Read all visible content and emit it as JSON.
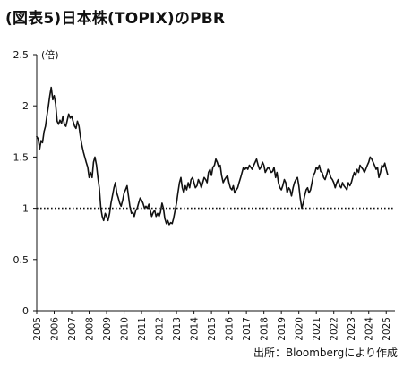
{
  "header": {
    "title": "(図表5)日本株(TOPIX)のPBR"
  },
  "footer": {
    "source": "出所：Bloombergにより作成"
  },
  "chart_data": {
    "type": "line",
    "title": "(図表5)日本株(TOPIX)のPBR",
    "ylabel": "(倍)",
    "xlabel": "",
    "ylim": [
      0,
      2.5
    ],
    "xlim": [
      2005,
      2025.5
    ],
    "yticks": [
      0,
      0.5,
      1,
      1.5,
      2,
      2.5
    ],
    "ytick_labels": [
      "0",
      "0.5",
      "1",
      "1.5",
      "2",
      "2.5"
    ],
    "xticks": [
      2005,
      2006,
      2007,
      2008,
      2009,
      2010,
      2011,
      2012,
      2013,
      2014,
      2015,
      2016,
      2017,
      2018,
      2019,
      2020,
      2021,
      2022,
      2023,
      2024,
      2025
    ],
    "xtick_labels": [
      "2005",
      "2006",
      "2007",
      "2008",
      "2009",
      "2010",
      "2011",
      "2012",
      "2013",
      "2014",
      "2015",
      "2016",
      "2017",
      "2018",
      "2019",
      "2020",
      "2021",
      "2022",
      "2023",
      "2024",
      "2025"
    ],
    "reference_lines": [
      {
        "y": 1.0,
        "style": "dotted"
      }
    ],
    "grid": false,
    "series": [
      {
        "color": "#111111",
        "x": [
          2005.0,
          2005.08,
          2005.17,
          2005.25,
          2005.33,
          2005.42,
          2005.5,
          2005.58,
          2005.67,
          2005.75,
          2005.83,
          2005.92,
          2006.0,
          2006.08,
          2006.17,
          2006.25,
          2006.33,
          2006.42,
          2006.5,
          2006.58,
          2006.67,
          2006.75,
          2006.83,
          2006.92,
          2007.0,
          2007.08,
          2007.17,
          2007.25,
          2007.33,
          2007.42,
          2007.5,
          2007.58,
          2007.67,
          2007.75,
          2007.83,
          2007.92,
          2008.0,
          2008.08,
          2008.17,
          2008.25,
          2008.33,
          2008.42,
          2008.5,
          2008.58,
          2008.67,
          2008.75,
          2008.83,
          2008.92,
          2009.0,
          2009.08,
          2009.17,
          2009.25,
          2009.33,
          2009.42,
          2009.5,
          2009.58,
          2009.67,
          2009.75,
          2009.83,
          2009.92,
          2010.0,
          2010.08,
          2010.17,
          2010.25,
          2010.33,
          2010.42,
          2010.5,
          2010.58,
          2010.67,
          2010.75,
          2010.83,
          2010.92,
          2011.0,
          2011.08,
          2011.17,
          2011.25,
          2011.33,
          2011.42,
          2011.5,
          2011.58,
          2011.67,
          2011.75,
          2011.83,
          2011.92,
          2012.0,
          2012.08,
          2012.17,
          2012.25,
          2012.33,
          2012.42,
          2012.5,
          2012.58,
          2012.67,
          2012.75,
          2012.83,
          2012.92,
          2013.0,
          2013.08,
          2013.17,
          2013.25,
          2013.33,
          2013.42,
          2013.5,
          2013.58,
          2013.67,
          2013.75,
          2013.83,
          2013.92,
          2014.0,
          2014.08,
          2014.17,
          2014.25,
          2014.33,
          2014.42,
          2014.5,
          2014.58,
          2014.67,
          2014.75,
          2014.83,
          2014.92,
          2015.0,
          2015.08,
          2015.17,
          2015.25,
          2015.33,
          2015.42,
          2015.5,
          2015.58,
          2015.67,
          2015.75,
          2015.83,
          2015.92,
          2016.0,
          2016.08,
          2016.17,
          2016.25,
          2016.33,
          2016.42,
          2016.5,
          2016.58,
          2016.67,
          2016.75,
          2016.83,
          2016.92,
          2017.0,
          2017.08,
          2017.17,
          2017.25,
          2017.33,
          2017.42,
          2017.5,
          2017.58,
          2017.67,
          2017.75,
          2017.83,
          2017.92,
          2018.0,
          2018.08,
          2018.17,
          2018.25,
          2018.33,
          2018.42,
          2018.5,
          2018.58,
          2018.67,
          2018.75,
          2018.83,
          2018.92,
          2019.0,
          2019.08,
          2019.17,
          2019.25,
          2019.33,
          2019.42,
          2019.5,
          2019.58,
          2019.67,
          2019.75,
          2019.83,
          2019.92,
          2020.0,
          2020.08,
          2020.17,
          2020.25,
          2020.33,
          2020.42,
          2020.5,
          2020.58,
          2020.67,
          2020.75,
          2020.83,
          2020.92,
          2021.0,
          2021.08,
          2021.17,
          2021.25,
          2021.33,
          2021.42,
          2021.5,
          2021.58,
          2021.67,
          2021.75,
          2021.83,
          2021.92,
          2022.0,
          2022.08,
          2022.17,
          2022.25,
          2022.33,
          2022.42,
          2022.5,
          2022.58,
          2022.67,
          2022.75,
          2022.83,
          2022.92,
          2023.0,
          2023.08,
          2023.17,
          2023.25,
          2023.33,
          2023.42,
          2023.5,
          2023.58,
          2023.67,
          2023.75,
          2023.83,
          2023.92,
          2024.0,
          2024.08,
          2024.17,
          2024.25,
          2024.33,
          2024.42,
          2024.5,
          2024.58,
          2024.67,
          2024.75,
          2024.83,
          2024.92,
          2025.0,
          2025.08
        ],
        "y": [
          1.7,
          1.68,
          1.58,
          1.66,
          1.64,
          1.75,
          1.8,
          1.9,
          2.0,
          2.1,
          2.18,
          2.06,
          2.1,
          2.02,
          1.85,
          1.82,
          1.86,
          1.83,
          1.9,
          1.82,
          1.8,
          1.86,
          1.92,
          1.88,
          1.9,
          1.85,
          1.8,
          1.78,
          1.85,
          1.8,
          1.7,
          1.62,
          1.55,
          1.5,
          1.45,
          1.4,
          1.3,
          1.35,
          1.3,
          1.45,
          1.5,
          1.42,
          1.3,
          1.2,
          1.0,
          0.92,
          0.88,
          0.95,
          0.92,
          0.88,
          0.95,
          1.05,
          1.12,
          1.2,
          1.25,
          1.15,
          1.1,
          1.05,
          1.02,
          1.08,
          1.15,
          1.18,
          1.22,
          1.12,
          1.02,
          0.95,
          0.96,
          0.92,
          0.98,
          1.0,
          1.05,
          1.1,
          1.08,
          1.05,
          1.0,
          1.02,
          1.0,
          1.04,
          0.98,
          0.92,
          0.96,
          0.98,
          0.92,
          0.95,
          0.92,
          0.96,
          1.05,
          1.0,
          0.9,
          0.85,
          0.88,
          0.84,
          0.86,
          0.85,
          0.9,
          0.98,
          1.05,
          1.15,
          1.25,
          1.3,
          1.2,
          1.15,
          1.22,
          1.18,
          1.25,
          1.2,
          1.28,
          1.3,
          1.25,
          1.2,
          1.22,
          1.28,
          1.25,
          1.2,
          1.25,
          1.3,
          1.28,
          1.25,
          1.35,
          1.38,
          1.32,
          1.4,
          1.42,
          1.48,
          1.45,
          1.4,
          1.42,
          1.32,
          1.25,
          1.28,
          1.3,
          1.32,
          1.25,
          1.2,
          1.18,
          1.22,
          1.15,
          1.18,
          1.2,
          1.25,
          1.3,
          1.35,
          1.4,
          1.38,
          1.4,
          1.38,
          1.42,
          1.4,
          1.38,
          1.42,
          1.45,
          1.48,
          1.42,
          1.38,
          1.4,
          1.45,
          1.42,
          1.35,
          1.38,
          1.4,
          1.38,
          1.35,
          1.36,
          1.4,
          1.3,
          1.35,
          1.25,
          1.2,
          1.18,
          1.22,
          1.28,
          1.25,
          1.15,
          1.2,
          1.18,
          1.12,
          1.2,
          1.25,
          1.28,
          1.3,
          1.22,
          1.1,
          1.0,
          1.05,
          1.12,
          1.18,
          1.2,
          1.15,
          1.18,
          1.25,
          1.32,
          1.35,
          1.4,
          1.38,
          1.42,
          1.36,
          1.35,
          1.3,
          1.28,
          1.32,
          1.38,
          1.35,
          1.3,
          1.28,
          1.25,
          1.2,
          1.25,
          1.28,
          1.22,
          1.2,
          1.25,
          1.22,
          1.2,
          1.18,
          1.25,
          1.22,
          1.25,
          1.3,
          1.35,
          1.32,
          1.38,
          1.35,
          1.42,
          1.4,
          1.38,
          1.35,
          1.38,
          1.42,
          1.45,
          1.5,
          1.48,
          1.45,
          1.42,
          1.38,
          1.4,
          1.3,
          1.35,
          1.42,
          1.4,
          1.44,
          1.38,
          1.33
        ]
      }
    ]
  }
}
